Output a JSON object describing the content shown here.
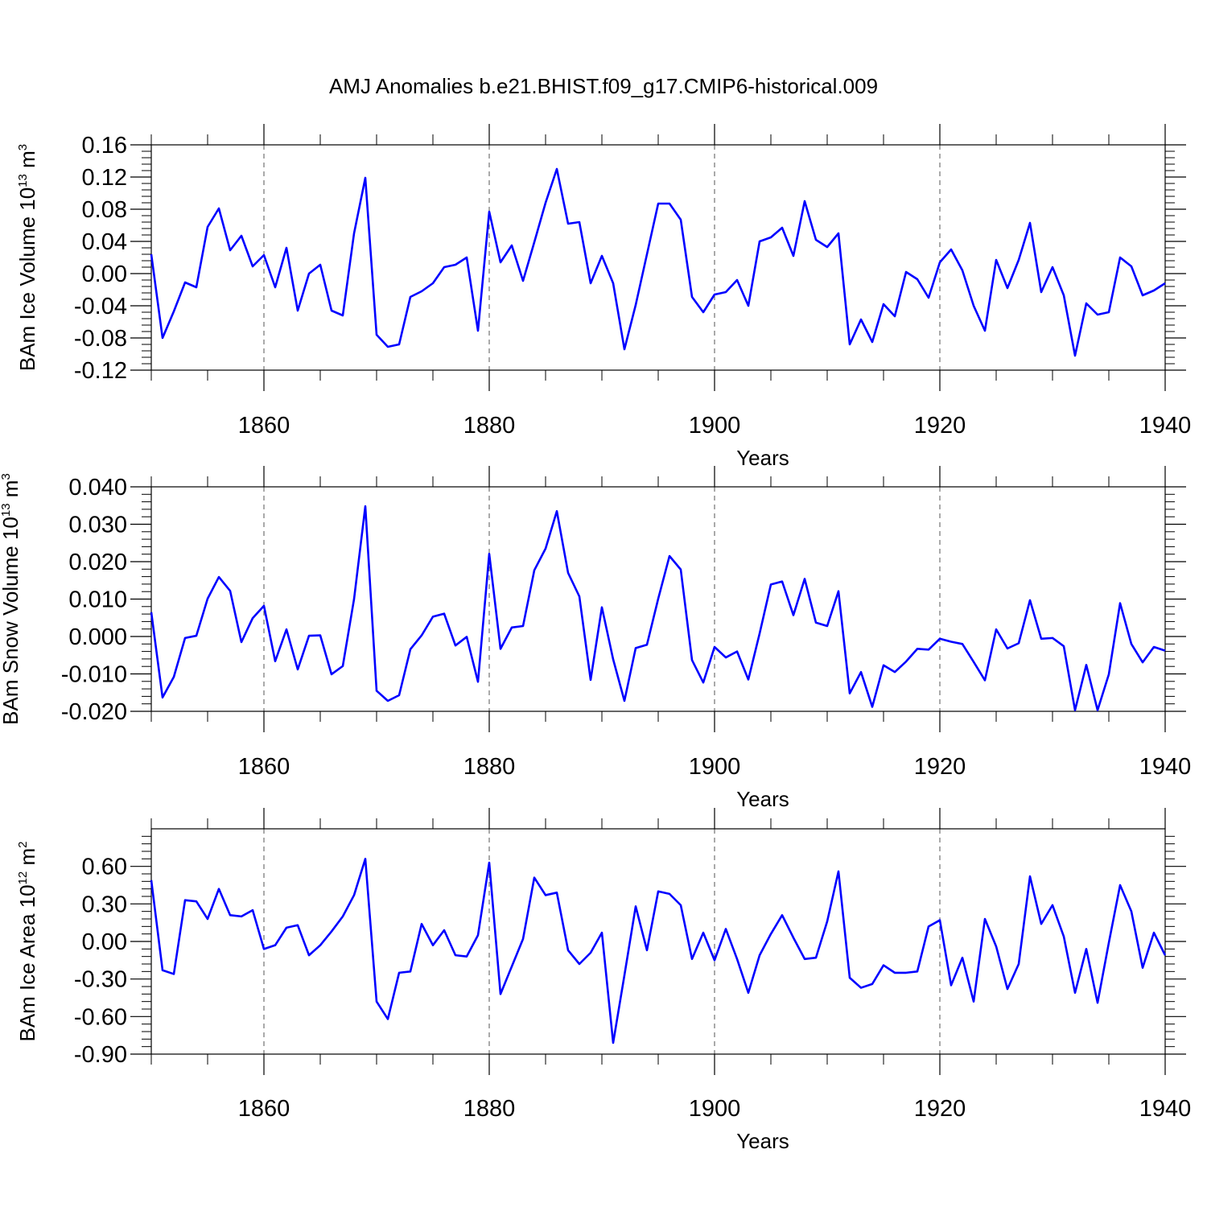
{
  "title": "AMJ Anomalies b.e21.BHIST.f09_g17.CMIP6-historical.009",
  "colors": {
    "line": "#0000ff",
    "axis": "#000000",
    "grid": "#555555"
  },
  "chart_data": [
    {
      "type": "line",
      "ylabel": "BAm Ice Volume 10",
      "ylabel_exp": "13",
      "ylabel_unit": " m",
      "ylabel_unit_exp": "3",
      "xlabel": "Years",
      "xlim": [
        1850,
        1940
      ],
      "ylim": [
        -0.12,
        0.16
      ],
      "yticks": [
        -0.12,
        -0.08,
        -0.04,
        0.0,
        0.04,
        0.08,
        0.12,
        0.16
      ],
      "ytick_labels": [
        "-0.12",
        "-0.08",
        "-0.04",
        "0.00",
        "0.04",
        "0.08",
        "0.12",
        "0.16"
      ],
      "xticks": [
        1860,
        1880,
        1900,
        1920,
        1940
      ],
      "xtick_labels": [
        "1860",
        "1880",
        "1900",
        "1920",
        "1940"
      ],
      "x_start": 1850,
      "values": [
        0.024,
        -0.08,
        -0.047,
        -0.011,
        -0.017,
        0.058,
        0.081,
        0.029,
        0.047,
        0.009,
        0.023,
        -0.017,
        0.032,
        -0.046,
        0.0,
        0.011,
        -0.046,
        -0.052,
        0.05,
        0.119,
        -0.076,
        -0.091,
        -0.088,
        -0.029,
        -0.022,
        -0.012,
        0.008,
        0.011,
        0.02,
        -0.071,
        0.077,
        0.014,
        0.035,
        -0.009,
        0.039,
        0.088,
        0.13,
        0.062,
        0.064,
        -0.012,
        0.022,
        -0.012,
        -0.094,
        -0.039,
        0.024,
        0.087,
        0.087,
        0.067,
        -0.029,
        -0.048,
        -0.026,
        -0.023,
        -0.008,
        -0.04,
        0.04,
        0.045,
        0.057,
        0.022,
        0.09,
        0.042,
        0.033,
        0.05,
        -0.088,
        -0.057,
        -0.085,
        -0.038,
        -0.053,
        0.002,
        -0.007,
        -0.03,
        0.014,
        0.03,
        0.004,
        -0.04,
        -0.071,
        0.017,
        -0.018,
        0.017,
        0.063,
        -0.023,
        0.008,
        -0.027,
        -0.102,
        -0.037,
        -0.051,
        -0.048,
        0.02,
        0.009,
        -0.027,
        -0.021,
        -0.012
      ]
    },
    {
      "type": "line",
      "ylabel": "BAm Snow Volume 10",
      "ylabel_exp": "13",
      "ylabel_unit": " m",
      "ylabel_unit_exp": "3",
      "xlabel": "Years",
      "xlim": [
        1850,
        1940
      ],
      "ylim": [
        -0.02,
        0.04
      ],
      "yticks": [
        -0.02,
        -0.01,
        0.0,
        0.01,
        0.02,
        0.03,
        0.04
      ],
      "ytick_labels": [
        "-0.020",
        "-0.010",
        "0.000",
        "0.010",
        "0.020",
        "0.030",
        "0.040"
      ],
      "xticks": [
        1860,
        1880,
        1900,
        1920,
        1940
      ],
      "xtick_labels": [
        "1860",
        "1880",
        "1900",
        "1920",
        "1940"
      ],
      "x_start": 1850,
      "values": [
        0.0065,
        -0.0163,
        -0.0108,
        -0.0004,
        0.0002,
        0.0101,
        0.0159,
        0.0122,
        -0.0015,
        0.0049,
        0.0082,
        -0.0066,
        0.0019,
        -0.0088,
        0.0002,
        0.0003,
        -0.0101,
        -0.0079,
        0.01,
        0.0348,
        -0.0145,
        -0.0172,
        -0.0157,
        -0.0034,
        0.0003,
        0.0053,
        0.0061,
        -0.0024,
        -0.0001,
        -0.0121,
        0.0221,
        -0.0033,
        0.0024,
        0.0028,
        0.0177,
        0.0235,
        0.0335,
        0.017,
        0.0107,
        -0.0116,
        0.0078,
        -0.0061,
        -0.0172,
        -0.0031,
        -0.0022,
        0.0101,
        0.0215,
        0.0179,
        -0.0063,
        -0.0123,
        -0.0028,
        -0.0056,
        -0.004,
        -0.0115,
        0.0008,
        0.0139,
        0.0147,
        0.0057,
        0.0154,
        0.0037,
        0.0028,
        0.0121,
        -0.0152,
        -0.0095,
        -0.0188,
        -0.0077,
        -0.0095,
        -0.0067,
        -0.0033,
        -0.0035,
        -0.0006,
        -0.0014,
        -0.002,
        -0.0068,
        -0.0117,
        0.0019,
        -0.0032,
        -0.0018,
        0.0097,
        -0.0006,
        -0.0004,
        -0.0026,
        -0.0197,
        -0.0076,
        -0.0197,
        -0.0101,
        0.0089,
        -0.002,
        -0.0069,
        -0.0028,
        -0.0038
      ]
    },
    {
      "type": "line",
      "ylabel": "BAm Ice Area 10",
      "ylabel_exp": "12",
      "ylabel_unit": " m",
      "ylabel_unit_exp": "2",
      "xlabel": "Years",
      "xlim": [
        1850,
        1940
      ],
      "ylim": [
        -0.9,
        0.9
      ],
      "yticks": [
        -0.9,
        -0.6,
        -0.3,
        0.0,
        0.3,
        0.6
      ],
      "ytick_labels": [
        "-0.90",
        "-0.60",
        "-0.30",
        "0.00",
        "0.30",
        "0.60"
      ],
      "xticks": [
        1860,
        1880,
        1900,
        1920,
        1940
      ],
      "xtick_labels": [
        "1860",
        "1880",
        "1900",
        "1920",
        "1940"
      ],
      "x_start": 1850,
      "values": [
        0.49,
        -0.23,
        -0.26,
        0.33,
        0.32,
        0.18,
        0.42,
        0.21,
        0.2,
        0.25,
        -0.06,
        -0.03,
        0.11,
        0.13,
        -0.11,
        -0.03,
        0.08,
        0.2,
        0.37,
        0.66,
        -0.48,
        -0.62,
        -0.25,
        -0.24,
        0.14,
        -0.03,
        0.09,
        -0.11,
        -0.12,
        0.05,
        0.63,
        -0.42,
        -0.2,
        0.02,
        0.51,
        0.37,
        0.39,
        -0.07,
        -0.18,
        -0.09,
        0.07,
        -0.81,
        -0.27,
        0.28,
        -0.07,
        0.4,
        0.38,
        0.29,
        -0.14,
        0.07,
        -0.15,
        0.1,
        -0.14,
        -0.41,
        -0.11,
        0.06,
        0.21,
        0.03,
        -0.14,
        -0.13,
        0.16,
        0.56,
        -0.29,
        -0.37,
        -0.34,
        -0.19,
        -0.25,
        -0.25,
        -0.24,
        0.12,
        0.17,
        -0.35,
        -0.13,
        -0.48,
        0.18,
        -0.04,
        -0.38,
        -0.18,
        0.52,
        0.14,
        0.29,
        0.04,
        -0.41,
        -0.06,
        -0.49,
        -0.01,
        0.45,
        0.24,
        -0.21,
        0.07,
        -0.11
      ]
    }
  ]
}
